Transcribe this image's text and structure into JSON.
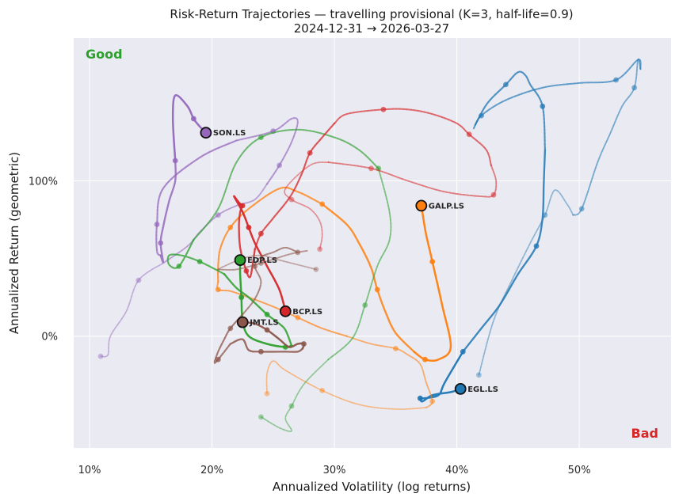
{
  "chart_data": {
    "type": "line",
    "title": "Risk-Return Trajectories — travelling provisional (K=3, half-life=0.9)",
    "subtitle": "2024-12-31 → 2026-03-27",
    "xlabel": "Annualized Volatility (log returns)",
    "ylabel": "Annualized Return (geometric)",
    "xlim": [
      8.7,
      57.5
    ],
    "ylim": [
      -72,
      192
    ],
    "x_ticks": [
      10,
      20,
      30,
      40,
      50
    ],
    "x_tick_labels": [
      "10%",
      "20%",
      "30%",
      "40%",
      "50%"
    ],
    "y_ticks": [
      0,
      100
    ],
    "y_tick_labels": [
      "0%",
      "100%"
    ],
    "grid": true,
    "good_label": "Good",
    "bad_label": "Bad",
    "good_color": "#2ca02c",
    "bad_color": "#d62728",
    "series": [
      {
        "name": "SON.LS",
        "color": "#9467bd",
        "points": [
          [
            10.9,
            -13
          ],
          [
            11.5,
            -12
          ],
          [
            11.7,
            0
          ],
          [
            13,
            16
          ],
          [
            14,
            36
          ],
          [
            16,
            47
          ],
          [
            18,
            58
          ],
          [
            19,
            67
          ],
          [
            20.5,
            78
          ],
          [
            22,
            84
          ],
          [
            23.5,
            88
          ],
          [
            24.5,
            98
          ],
          [
            25.5,
            110
          ],
          [
            26.5,
            125
          ],
          [
            27,
            138
          ],
          [
            26.5,
            140
          ],
          [
            25,
            132
          ],
          [
            22,
            126
          ],
          [
            19,
            115
          ],
          [
            16,
            95
          ],
          [
            15.5,
            72
          ],
          [
            15.5,
            55
          ],
          [
            15.8,
            52
          ],
          [
            16,
            48
          ],
          [
            15.8,
            60
          ],
          [
            16,
            70
          ],
          [
            16.5,
            87
          ],
          [
            17,
            100
          ],
          [
            17,
            113
          ],
          [
            16.8,
            140
          ],
          [
            17,
            155
          ],
          [
            18,
            148
          ],
          [
            18.5,
            140
          ],
          [
            19,
            135
          ],
          [
            19.5,
            131
          ]
        ],
        "endpoint": [
          19.5,
          131
        ]
      },
      {
        "name": "EGL.LS",
        "color": "#1f77b4",
        "points": [
          [
            41.8,
            -25
          ],
          [
            43,
            10
          ],
          [
            44.5,
            36
          ],
          [
            46,
            60
          ],
          [
            47.2,
            78
          ],
          [
            48,
            94
          ],
          [
            49,
            85
          ],
          [
            49.5,
            78
          ],
          [
            50.2,
            82
          ],
          [
            51.5,
            112
          ],
          [
            52.5,
            130
          ],
          [
            53.5,
            148
          ],
          [
            54.5,
            160
          ],
          [
            54.8,
            178
          ],
          [
            55,
            172
          ],
          [
            54.8,
            178
          ],
          [
            53,
            165
          ],
          [
            50,
            163
          ],
          [
            47,
            160
          ],
          [
            44,
            152
          ],
          [
            42,
            142
          ],
          [
            41.4,
            134
          ],
          [
            41.5,
            136
          ],
          [
            42.5,
            150
          ],
          [
            44,
            162
          ],
          [
            45,
            170
          ],
          [
            45.6,
            168
          ],
          [
            46,
            162
          ],
          [
            47,
            148
          ],
          [
            47.2,
            120
          ],
          [
            47.1,
            98
          ],
          [
            47,
            76
          ],
          [
            46.5,
            58
          ],
          [
            45,
            40
          ],
          [
            43.5,
            20
          ],
          [
            42,
            5
          ],
          [
            40.5,
            -10
          ],
          [
            39,
            -30
          ],
          [
            38.5,
            -38
          ],
          [
            37.3,
            -40
          ],
          [
            37,
            -40
          ],
          [
            37.2,
            -42
          ],
          [
            38,
            -38
          ],
          [
            39.5,
            -36
          ],
          [
            40.3,
            -34
          ]
        ],
        "endpoint": [
          40.3,
          -34
        ]
      },
      {
        "name": "GALP.LS",
        "color": "#ff7f0e",
        "points": [
          [
            24.5,
            -37
          ],
          [
            24.5,
            -24
          ],
          [
            25,
            -16
          ],
          [
            26,
            -22
          ],
          [
            29,
            -35
          ],
          [
            32,
            -44
          ],
          [
            35,
            -47
          ],
          [
            37.5,
            -46
          ],
          [
            38,
            -42
          ],
          [
            37.5,
            -30
          ],
          [
            37,
            -18
          ],
          [
            36,
            -12
          ],
          [
            35,
            -8
          ],
          [
            33,
            -5
          ],
          [
            31,
            0
          ],
          [
            29,
            5
          ],
          [
            27,
            12
          ],
          [
            25,
            19
          ],
          [
            23,
            25
          ],
          [
            21.5,
            29
          ],
          [
            20.5,
            30
          ],
          [
            20.5,
            35
          ],
          [
            20.5,
            45
          ],
          [
            20.7,
            57
          ],
          [
            21.5,
            70
          ],
          [
            23,
            82
          ],
          [
            25.5,
            95
          ],
          [
            27,
            93
          ],
          [
            29,
            85
          ],
          [
            31,
            72
          ],
          [
            32,
            60
          ],
          [
            33,
            44
          ],
          [
            33.5,
            30
          ],
          [
            34.2,
            15
          ],
          [
            35,
            2
          ],
          [
            36.5,
            -10
          ],
          [
            37.4,
            -15
          ],
          [
            38.5,
            -15
          ],
          [
            39.5,
            -7
          ],
          [
            38.8,
            20
          ],
          [
            38,
            48
          ],
          [
            37.5,
            65
          ],
          [
            37.3,
            74
          ],
          [
            37.1,
            84
          ]
        ],
        "endpoint": [
          37.1,
          84
        ]
      },
      {
        "name": "EDP.LS",
        "color": "#2ca02c",
        "points": [
          [
            24,
            -52
          ],
          [
            25.5,
            -59
          ],
          [
            26.5,
            -61
          ],
          [
            26,
            -53
          ],
          [
            26.5,
            -45
          ],
          [
            27.5,
            -31
          ],
          [
            29.5,
            -15
          ],
          [
            31.5,
            -1
          ],
          [
            32.5,
            20
          ],
          [
            33.5,
            45
          ],
          [
            34.5,
            62
          ],
          [
            34.5,
            80
          ],
          [
            33.6,
            108
          ],
          [
            32,
            120
          ],
          [
            30,
            128
          ],
          [
            27,
            133
          ],
          [
            24,
            128
          ],
          [
            22,
            112
          ],
          [
            20.5,
            82
          ],
          [
            18.5,
            62
          ],
          [
            17.3,
            45
          ],
          [
            16.5,
            46
          ],
          [
            16.5,
            52
          ],
          [
            17.5,
            52
          ],
          [
            19,
            48
          ],
          [
            21,
            40
          ],
          [
            22,
            31
          ],
          [
            23,
            25
          ],
          [
            24.5,
            14
          ],
          [
            25.5,
            8
          ],
          [
            26,
            4
          ],
          [
            26.5,
            -6
          ],
          [
            26,
            -7
          ],
          [
            24.5,
            -5
          ],
          [
            23,
            0
          ],
          [
            22.5,
            10
          ],
          [
            22.4,
            25
          ],
          [
            22.3,
            40
          ],
          [
            22.3,
            49
          ]
        ],
        "endpoint": [
          22.3,
          49
        ]
      },
      {
        "name": "BCP.LS",
        "color": "#d62728",
        "points": [
          [
            28.8,
            56
          ],
          [
            29,
            65
          ],
          [
            28.8,
            74
          ],
          [
            28,
            82
          ],
          [
            26.5,
            88
          ],
          [
            26,
            95
          ],
          [
            28,
            110
          ],
          [
            29.5,
            112
          ],
          [
            33,
            108
          ],
          [
            36,
            100
          ],
          [
            39,
            93
          ],
          [
            42,
            90
          ],
          [
            43,
            91
          ],
          [
            43.2,
            100
          ],
          [
            42.8,
            110
          ],
          [
            42.4,
            120
          ],
          [
            41,
            130
          ],
          [
            40,
            137
          ],
          [
            38,
            143
          ],
          [
            36,
            146
          ],
          [
            34,
            146
          ],
          [
            31,
            143
          ],
          [
            30,
            137
          ],
          [
            29,
            128
          ],
          [
            28,
            118
          ],
          [
            27.3,
            104
          ],
          [
            26.4,
            90
          ],
          [
            25,
            76
          ],
          [
            24,
            66
          ],
          [
            23.5,
            56
          ],
          [
            23.3,
            45
          ],
          [
            23.1,
            38
          ],
          [
            22.8,
            42
          ],
          [
            22.3,
            57
          ],
          [
            22.2,
            72
          ],
          [
            22.3,
            80
          ],
          [
            22.5,
            84
          ],
          [
            22.2,
            86
          ],
          [
            21.8,
            90
          ],
          [
            22.5,
            80
          ],
          [
            23,
            70
          ],
          [
            23.5,
            60
          ],
          [
            24.5,
            45
          ],
          [
            25.5,
            30
          ],
          [
            26,
            16
          ]
        ],
        "endpoint": [
          26,
          16
        ]
      },
      {
        "name": "JMT.LS",
        "color": "#8c564b",
        "points": [
          [
            28.5,
            43
          ],
          [
            27.5,
            45
          ],
          [
            25.5,
            49
          ],
          [
            24,
            52
          ],
          [
            22.5,
            50
          ],
          [
            21,
            45
          ],
          [
            20.5,
            43
          ],
          [
            22,
            43
          ],
          [
            24,
            47
          ],
          [
            26,
            52
          ],
          [
            27,
            54
          ],
          [
            27.8,
            55
          ],
          [
            27,
            54
          ],
          [
            26,
            57
          ],
          [
            25,
            54
          ],
          [
            24,
            51
          ],
          [
            23.5,
            45
          ],
          [
            24,
            35
          ],
          [
            23.5,
            24
          ],
          [
            22.5,
            14
          ],
          [
            21.5,
            5
          ],
          [
            21,
            -2
          ],
          [
            20.5,
            -10
          ],
          [
            20.2,
            -17
          ],
          [
            20.5,
            -15
          ],
          [
            21.5,
            -5
          ],
          [
            22.5,
            -2
          ],
          [
            23,
            -9
          ],
          [
            24,
            -10
          ],
          [
            26,
            -10
          ],
          [
            27,
            -10
          ],
          [
            27.4,
            -8
          ],
          [
            27.5,
            -5
          ],
          [
            27,
            -5
          ],
          [
            26.3,
            -7
          ],
          [
            25.5,
            -2
          ],
          [
            24.5,
            4
          ],
          [
            23.5,
            8
          ],
          [
            22.5,
            9
          ]
        ],
        "endpoint": [
          22.5,
          9
        ]
      }
    ]
  }
}
